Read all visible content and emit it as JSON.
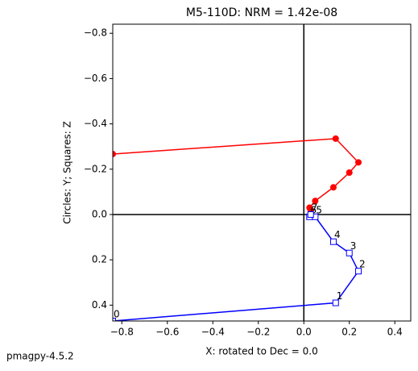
{
  "chart_data": {
    "type": "line",
    "title": "M5-110D: NRM =  1.42e-08",
    "xlabel": "X: rotated to Dec =     0.0",
    "ylabel": "Circles: Y; Squares: Z",
    "footer": "pmagpy-4.5.2",
    "x": [
      -0.84,
      0.14,
      0.24,
      0.2,
      0.13,
      0.05,
      0.025,
      0.03
    ],
    "series": [
      {
        "color": "#ff0000",
        "marker": "circle",
        "values": [
          -0.267,
          -0.335,
          -0.23,
          -0.185,
          -0.12,
          -0.06,
          -0.03,
          -0.02
        ]
      },
      {
        "color": "#0000ff",
        "marker": "square",
        "values": [
          0.47,
          0.39,
          0.25,
          0.17,
          0.12,
          0.01,
          0.01,
          0.0
        ],
        "point_labels": [
          "0",
          "1",
          "2",
          "3",
          "4",
          "5",
          "6",
          "7"
        ]
      }
    ],
    "xlim": [
      -0.84,
      0.47
    ],
    "ylim": [
      -0.84,
      0.47
    ],
    "y_inverted": true,
    "axis_lines": true,
    "xticks": [
      {
        "value": -0.8,
        "label": "−0.8"
      },
      {
        "value": -0.6,
        "label": "−0.6"
      },
      {
        "value": -0.4,
        "label": "−0.4"
      },
      {
        "value": -0.2,
        "label": "−0.2"
      },
      {
        "value": 0,
        "label": "0.0"
      },
      0.2,
      0.4
    ],
    "yticks": [
      {
        "value": -0.8,
        "label": "−0.8"
      },
      {
        "value": -0.6,
        "label": "−0.6"
      },
      {
        "value": -0.4,
        "label": "−0.4"
      },
      {
        "value": -0.2,
        "label": "−0.2"
      },
      {
        "value": 0,
        "label": "0.0"
      },
      0.2,
      0.4
    ]
  }
}
